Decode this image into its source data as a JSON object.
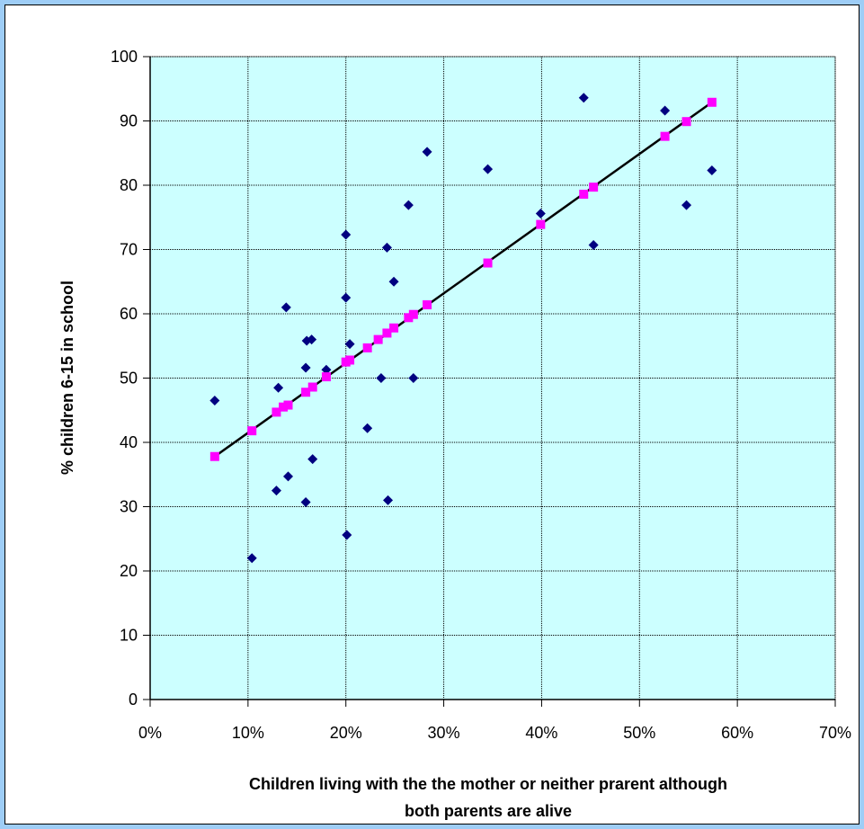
{
  "chart_data": {
    "type": "scatter",
    "title": "",
    "xlabel": "Children living with the the mother or neither prarent although both parents are alive",
    "xlabel_lines": [
      "Children living with the the mother or neither prarent although",
      "both parents are alive"
    ],
    "ylabel": "% children  6-15 in school",
    "xlim": [
      0,
      0.7
    ],
    "ylim": [
      0,
      100
    ],
    "x_ticks": [
      0,
      0.1,
      0.2,
      0.3,
      0.4,
      0.5,
      0.6,
      0.7
    ],
    "x_tick_labels": [
      "0%",
      "10%",
      "20%",
      "30%",
      "40%",
      "50%",
      "60%",
      "70%"
    ],
    "y_ticks": [
      0,
      10,
      20,
      30,
      40,
      50,
      60,
      70,
      80,
      90,
      100
    ],
    "y_tick_labels": [
      "0",
      "10",
      "20",
      "30",
      "40",
      "50",
      "60",
      "70",
      "80",
      "90",
      "100"
    ],
    "grid": true,
    "plot_background": "#ccffff",
    "series": [
      {
        "type": "scatter",
        "marker": "diamond",
        "color": "#000080",
        "points": [
          [
            0.066,
            46.5
          ],
          [
            0.104,
            22.0
          ],
          [
            0.129,
            32.5
          ],
          [
            0.131,
            48.5
          ],
          [
            0.139,
            61.0
          ],
          [
            0.141,
            34.7
          ],
          [
            0.159,
            30.7
          ],
          [
            0.159,
            51.6
          ],
          [
            0.16,
            55.8
          ],
          [
            0.165,
            56.0
          ],
          [
            0.166,
            37.4
          ],
          [
            0.18,
            51.3
          ],
          [
            0.2,
            72.3
          ],
          [
            0.2,
            62.5
          ],
          [
            0.201,
            25.6
          ],
          [
            0.204,
            55.3
          ],
          [
            0.222,
            42.2
          ],
          [
            0.236,
            50.0
          ],
          [
            0.242,
            70.3
          ],
          [
            0.243,
            31.0
          ],
          [
            0.249,
            65.0
          ],
          [
            0.264,
            76.9
          ],
          [
            0.269,
            50.0
          ],
          [
            0.283,
            85.2
          ],
          [
            0.345,
            82.5
          ],
          [
            0.399,
            75.6
          ],
          [
            0.443,
            93.6
          ],
          [
            0.453,
            70.7
          ],
          [
            0.526,
            91.6
          ],
          [
            0.548,
            76.9
          ],
          [
            0.574,
            82.3
          ]
        ]
      },
      {
        "type": "scatter",
        "marker": "square",
        "color": "#ff00ff",
        "points": [
          [
            0.066,
            37.8
          ],
          [
            0.104,
            41.8
          ],
          [
            0.129,
            44.7
          ],
          [
            0.136,
            45.5
          ],
          [
            0.141,
            45.8
          ],
          [
            0.159,
            47.8
          ],
          [
            0.166,
            48.6
          ],
          [
            0.18,
            50.2
          ],
          [
            0.2,
            52.5
          ],
          [
            0.204,
            52.8
          ],
          [
            0.222,
            54.7
          ],
          [
            0.233,
            56.0
          ],
          [
            0.242,
            57.0
          ],
          [
            0.249,
            57.8
          ],
          [
            0.264,
            59.4
          ],
          [
            0.269,
            59.9
          ],
          [
            0.283,
            61.4
          ],
          [
            0.345,
            67.9
          ],
          [
            0.399,
            73.9
          ],
          [
            0.443,
            78.6
          ],
          [
            0.453,
            79.7
          ],
          [
            0.526,
            87.6
          ],
          [
            0.548,
            89.9
          ],
          [
            0.574,
            92.9
          ]
        ]
      },
      {
        "type": "line",
        "color": "#000000",
        "points": [
          [
            0.066,
            37.8
          ],
          [
            0.574,
            92.9
          ]
        ]
      }
    ]
  }
}
